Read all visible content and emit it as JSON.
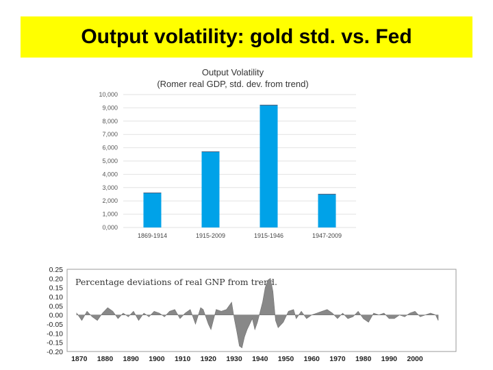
{
  "slide": {
    "title": "Output volatility: gold std. vs. Fed",
    "title_bg": "#ffff00"
  },
  "chart_data": [
    {
      "type": "bar",
      "title": "Output Volatility",
      "subtitle": "(Romer real GDP, std. dev. from trend)",
      "categories": [
        "1869-1914",
        "1915-2009",
        "1915-1946",
        "1947-2009"
      ],
      "values": [
        2.6,
        5.7,
        9.2,
        2.5
      ],
      "ylim": [
        0,
        10
      ],
      "yticks": [
        "0,000",
        "1,000",
        "2,000",
        "3,000",
        "4,000",
        "5,000",
        "6,000",
        "7,000",
        "8,000",
        "9,000",
        "10,000"
      ],
      "grid": true,
      "bar_color": "#00a2e8"
    },
    {
      "type": "area",
      "title": "Percentage deviations of real GNP from trend.",
      "xlim": [
        1869,
        2009
      ],
      "ylim": [
        -0.2,
        0.25
      ],
      "yticks": [
        "0.25",
        "0.20",
        "0.15",
        "0.10",
        "0.05",
        "0.00",
        "-0.05",
        "-0.10",
        "-0.15",
        "-0.20"
      ],
      "xticks": [
        "1870",
        "1880",
        "1890",
        "1900",
        "1910",
        "1920",
        "1930",
        "1940",
        "1950",
        "1960",
        "1970",
        "1980",
        "1990",
        "2000"
      ],
      "fill_color": "#888888",
      "x": [
        1869,
        1871,
        1873,
        1875,
        1877,
        1879,
        1881,
        1883,
        1885,
        1887,
        1889,
        1891,
        1893,
        1895,
        1897,
        1899,
        1901,
        1903,
        1905,
        1907,
        1909,
        1911,
        1913,
        1915,
        1917,
        1918,
        1920,
        1921,
        1923,
        1925,
        1927,
        1929,
        1930,
        1931,
        1932,
        1933,
        1934,
        1935,
        1937,
        1938,
        1939,
        1941,
        1942,
        1943,
        1944,
        1945,
        1946,
        1947,
        1949,
        1951,
        1953,
        1954,
        1956,
        1958,
        1960,
        1962,
        1964,
        1966,
        1968,
        1970,
        1972,
        1974,
        1976,
        1978,
        1980,
        1982,
        1984,
        1986,
        1988,
        1990,
        1992,
        1994,
        1996,
        1998,
        2000,
        2002,
        2004,
        2006,
        2008,
        2009
      ],
      "y": [
        0.01,
        -0.03,
        0.02,
        -0.01,
        -0.03,
        0.01,
        0.04,
        0.02,
        -0.02,
        0.01,
        -0.01,
        0.02,
        -0.03,
        0.01,
        -0.01,
        0.02,
        0.01,
        -0.01,
        0.02,
        0.03,
        -0.02,
        0.01,
        0.03,
        -0.05,
        0.04,
        0.03,
        -0.05,
        -0.08,
        0.03,
        0.02,
        0.03,
        0.07,
        -0.02,
        -0.09,
        -0.17,
        -0.18,
        -0.12,
        -0.08,
        -0.02,
        -0.08,
        -0.04,
        0.07,
        0.15,
        0.19,
        0.2,
        0.13,
        -0.03,
        -0.07,
        -0.04,
        0.02,
        0.03,
        -0.02,
        0.02,
        -0.02,
        0.0,
        0.01,
        0.02,
        0.03,
        0.01,
        -0.02,
        0.01,
        -0.02,
        -0.01,
        0.02,
        -0.02,
        -0.04,
        0.01,
        0.0,
        0.01,
        -0.02,
        -0.02,
        0.0,
        -0.01,
        0.01,
        0.02,
        -0.01,
        0.0,
        0.01,
        0.0,
        -0.03
      ]
    }
  ]
}
